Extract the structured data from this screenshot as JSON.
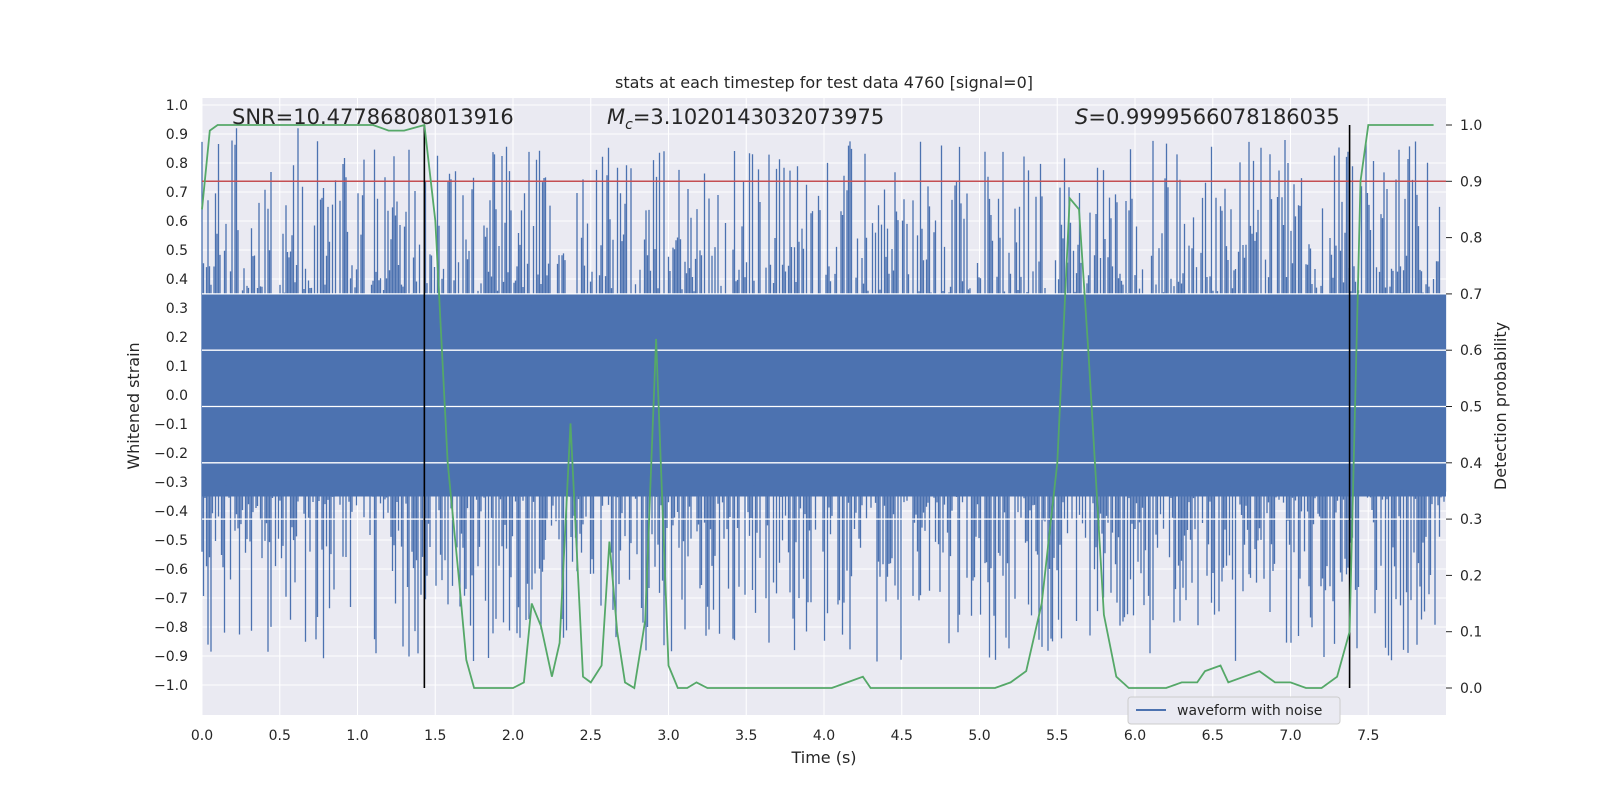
{
  "chart_data": {
    "type": "line",
    "title": "stats at each timestep for test data 4760 [signal=0]",
    "xlabel": "Time (s)",
    "ylabel_left": "Whitened strain",
    "ylabel_right": "Detection probability",
    "xlim": [
      0.0,
      8.0
    ],
    "ylim_left": [
      -1.09,
      1.01
    ],
    "ylim_right": [
      -0.05,
      1.04
    ],
    "xticks": [
      "0.0",
      "0.5",
      "1.0",
      "1.5",
      "2.0",
      "2.5",
      "3.0",
      "3.5",
      "4.0",
      "4.5",
      "5.0",
      "5.5",
      "6.0",
      "6.5",
      "7.0",
      "7.5"
    ],
    "yticks_left": [
      "1.0",
      "0.9",
      "0.8",
      "0.7",
      "0.6",
      "0.5",
      "0.4",
      "0.3",
      "0.2",
      "0.1",
      "0.0",
      "−0.1",
      "−0.2",
      "−0.3",
      "−0.4",
      "−0.5",
      "−0.6",
      "−0.7",
      "−0.8",
      "−0.9",
      "−1.0"
    ],
    "yticks_right": [
      "1.0",
      "0.9",
      "0.8",
      "0.7",
      "0.6",
      "0.5",
      "0.4",
      "0.3",
      "0.2",
      "0.1",
      "0.0"
    ],
    "grid": true,
    "legend_position": "lower-right",
    "annotations": {
      "snr": "SNR=10.47786808013916",
      "mc_symbol": "M",
      "mc_sub": "c",
      "mc_value": "=3.1020143032073975",
      "s_symbol": "S",
      "s_value": "=0.9999566078186035"
    },
    "threshold": {
      "axis": "right",
      "value": 0.9,
      "color": "#c44e52"
    },
    "vertical_lines": [
      1.43,
      7.38
    ],
    "waveform": {
      "name": "waveform with noise",
      "color": "#4c72b0",
      "core_amplitude": 0.35,
      "peak_max": 0.92,
      "peak_min": -1.0
    },
    "series": [
      {
        "name": "",
        "axis": "right",
        "color": "#55a868",
        "x": [
          0.0,
          0.05,
          0.1,
          0.2,
          0.3,
          0.5,
          0.7,
          0.9,
          1.1,
          1.2,
          1.3,
          1.43,
          1.5,
          1.58,
          1.65,
          1.7,
          1.75,
          1.85,
          2.0,
          2.07,
          2.12,
          2.18,
          2.25,
          2.3,
          2.37,
          2.4,
          2.45,
          2.5,
          2.57,
          2.62,
          2.67,
          2.72,
          2.78,
          2.85,
          2.92,
          3.0,
          3.06,
          3.12,
          3.18,
          3.25,
          3.4,
          3.6,
          3.8,
          3.95,
          4.05,
          4.15,
          4.25,
          4.3,
          4.5,
          4.7,
          5.0,
          5.1,
          5.2,
          5.3,
          5.4,
          5.5,
          5.58,
          5.64,
          5.7,
          5.8,
          5.88,
          5.96,
          6.05,
          6.2,
          6.3,
          6.4,
          6.45,
          6.55,
          6.6,
          6.7,
          6.8,
          6.9,
          7.0,
          7.1,
          7.2,
          7.3,
          7.38,
          7.45,
          7.5,
          7.6,
          7.7,
          7.8,
          7.92
        ],
        "values": [
          0.85,
          0.99,
          1.0,
          1.0,
          1.0,
          1.0,
          1.0,
          1.0,
          1.0,
          0.99,
          0.99,
          1.0,
          0.83,
          0.4,
          0.2,
          0.05,
          0.0,
          0.0,
          0.0,
          0.01,
          0.15,
          0.11,
          0.02,
          0.08,
          0.47,
          0.3,
          0.02,
          0.01,
          0.04,
          0.26,
          0.1,
          0.01,
          0.0,
          0.12,
          0.62,
          0.04,
          0.0,
          0.0,
          0.01,
          0.0,
          0.0,
          0.0,
          0.0,
          0.0,
          0.0,
          0.01,
          0.02,
          0.0,
          0.0,
          0.0,
          0.0,
          0.0,
          0.01,
          0.03,
          0.15,
          0.4,
          0.87,
          0.85,
          0.6,
          0.13,
          0.02,
          0.0,
          0.0,
          0.0,
          0.01,
          0.01,
          0.03,
          0.04,
          0.01,
          0.02,
          0.03,
          0.01,
          0.01,
          0.0,
          0.0,
          0.02,
          0.1,
          0.9,
          1.0,
          1.0,
          1.0,
          1.0,
          1.0
        ]
      }
    ]
  }
}
